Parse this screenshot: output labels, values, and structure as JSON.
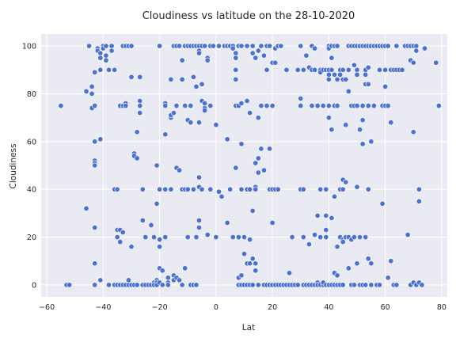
{
  "chart_data": {
    "type": "scatter",
    "title": "Cloudiness vs latitude on the 28-10-2020",
    "xlabel": "Lat",
    "ylabel": "Cloudiness",
    "xlim": [
      -62,
      82
    ],
    "ylim": [
      -5,
      105
    ],
    "xticks": [
      -60,
      -40,
      -20,
      0,
      20,
      40,
      60,
      80
    ],
    "yticks": [
      0,
      20,
      40,
      60,
      80,
      100
    ],
    "grid": true,
    "background": "#eaeaf2",
    "point_color": "#4c72d0",
    "point_edge": "#ffffff",
    "points": [
      [
        -55,
        75
      ],
      [
        -53,
        0
      ],
      [
        -52,
        0
      ],
      [
        -46,
        81
      ],
      [
        -46,
        32
      ],
      [
        -45,
        100
      ],
      [
        -45,
        100
      ],
      [
        -44,
        83
      ],
      [
        -44,
        80
      ],
      [
        -44,
        74
      ],
      [
        -43,
        89
      ],
      [
        -43,
        75
      ],
      [
        -43,
        60
      ],
      [
        -43,
        52
      ],
      [
        -43,
        51
      ],
      [
        -43,
        50
      ],
      [
        -43,
        24
      ],
      [
        -43,
        9
      ],
      [
        -43,
        0
      ],
      [
        -42,
        99
      ],
      [
        -42,
        98
      ],
      [
        -41,
        97
      ],
      [
        -41,
        95
      ],
      [
        -41,
        90
      ],
      [
        -41,
        61
      ],
      [
        -41,
        2
      ],
      [
        -40,
        100
      ],
      [
        -40,
        100
      ],
      [
        -40,
        99
      ],
      [
        -39,
        100
      ],
      [
        -39,
        100
      ],
      [
        -39,
        96
      ],
      [
        -39,
        94
      ],
      [
        -38,
        90
      ],
      [
        -38,
        0
      ],
      [
        -38,
        0
      ],
      [
        -37,
        100
      ],
      [
        -37,
        98
      ],
      [
        -36,
        90
      ],
      [
        -36,
        40
      ],
      [
        -36,
        0
      ],
      [
        -35,
        40
      ],
      [
        -35,
        23
      ],
      [
        -35,
        20
      ],
      [
        -35,
        0
      ],
      [
        -34,
        75
      ],
      [
        -34,
        75
      ],
      [
        -34,
        23
      ],
      [
        -34,
        18
      ],
      [
        -34,
        0
      ],
      [
        -33,
        100
      ],
      [
        -33,
        100
      ],
      [
        -33,
        75
      ],
      [
        -33,
        22
      ],
      [
        -33,
        0
      ],
      [
        -32,
        100
      ],
      [
        -32,
        76
      ],
      [
        -32,
        75
      ],
      [
        -32,
        0
      ],
      [
        -31,
        100
      ],
      [
        -31,
        2
      ],
      [
        -31,
        0
      ],
      [
        -30,
        100
      ],
      [
        -30,
        87
      ],
      [
        -30,
        16
      ],
      [
        -30,
        0
      ],
      [
        -29,
        55
      ],
      [
        -29,
        54
      ],
      [
        -29,
        0
      ],
      [
        -28,
        64
      ],
      [
        -28,
        53
      ],
      [
        -28,
        0
      ],
      [
        -27,
        77
      ],
      [
        -27,
        72
      ],
      [
        -27,
        87
      ],
      [
        -27,
        75
      ],
      [
        -26,
        40
      ],
      [
        -26,
        27
      ],
      [
        -26,
        0
      ],
      [
        -25,
        20
      ],
      [
        -25,
        0
      ],
      [
        -24,
        0
      ],
      [
        -23,
        25
      ],
      [
        -23,
        0
      ],
      [
        -22,
        20
      ],
      [
        -22,
        1
      ],
      [
        -22,
        0
      ],
      [
        -21,
        34
      ],
      [
        -21,
        2
      ],
      [
        -21,
        1
      ],
      [
        -21,
        0
      ],
      [
        -21,
        50
      ],
      [
        -20,
        100
      ],
      [
        -20,
        40
      ],
      [
        -20,
        16
      ],
      [
        -20,
        7
      ],
      [
        -20,
        19
      ],
      [
        -20,
        1
      ],
      [
        -19,
        6
      ],
      [
        -19,
        0
      ],
      [
        -19,
        0
      ],
      [
        -18,
        63
      ],
      [
        -18,
        76
      ],
      [
        -18,
        75
      ],
      [
        -18,
        40
      ],
      [
        -18,
        20
      ],
      [
        -17,
        3
      ],
      [
        -17,
        1
      ],
      [
        -17,
        0
      ],
      [
        -16,
        86
      ],
      [
        -16,
        70
      ],
      [
        -16,
        71
      ],
      [
        -16,
        40
      ],
      [
        -15,
        100
      ],
      [
        -15,
        72
      ],
      [
        -15,
        4
      ],
      [
        -15,
        2
      ],
      [
        -14,
        100
      ],
      [
        -14,
        75
      ],
      [
        -14,
        49
      ],
      [
        -14,
        3
      ],
      [
        -13,
        100
      ],
      [
        -13,
        48
      ],
      [
        -13,
        2
      ],
      [
        -12,
        94
      ],
      [
        -12,
        86
      ],
      [
        -12,
        0
      ],
      [
        -12,
        40
      ],
      [
        -11,
        100
      ],
      [
        -11,
        75
      ],
      [
        -11,
        40
      ],
      [
        -11,
        7
      ],
      [
        -10,
        100
      ],
      [
        -10,
        69
      ],
      [
        -10,
        40
      ],
      [
        -10,
        20
      ],
      [
        -9,
        100
      ],
      [
        -9,
        75
      ],
      [
        -9,
        68
      ],
      [
        -9,
        0
      ],
      [
        -8,
        100
      ],
      [
        -8,
        87
      ],
      [
        -8,
        40
      ],
      [
        -8,
        0
      ],
      [
        -7,
        100
      ],
      [
        -7,
        83
      ],
      [
        -7,
        20
      ],
      [
        -7,
        0
      ],
      [
        -6,
        100
      ],
      [
        -6,
        98
      ],
      [
        -6,
        97
      ],
      [
        -6,
        68
      ],
      [
        -6,
        45
      ],
      [
        -6,
        41
      ],
      [
        -6,
        27
      ],
      [
        -6,
        24
      ],
      [
        -5,
        100
      ],
      [
        -5,
        84
      ],
      [
        -5,
        77
      ],
      [
        -5,
        40
      ],
      [
        -4,
        100
      ],
      [
        -4,
        76
      ],
      [
        -4,
        74
      ],
      [
        -4,
        73
      ],
      [
        -3,
        95
      ],
      [
        -3,
        94
      ],
      [
        -3,
        21
      ],
      [
        -2,
        100
      ],
      [
        -2,
        75
      ],
      [
        -2,
        40
      ],
      [
        -1,
        100
      ],
      [
        0,
        67
      ],
      [
        0,
        20
      ],
      [
        1,
        100
      ],
      [
        1,
        39
      ],
      [
        2,
        37
      ],
      [
        3,
        100
      ],
      [
        4,
        100
      ],
      [
        4,
        61
      ],
      [
        4,
        26
      ],
      [
        5,
        100
      ],
      [
        5,
        100
      ],
      [
        5,
        40
      ],
      [
        6,
        100
      ],
      [
        6,
        99
      ],
      [
        6,
        20
      ],
      [
        7,
        97
      ],
      [
        7,
        95
      ],
      [
        7,
        90
      ],
      [
        7,
        86
      ],
      [
        7,
        75
      ],
      [
        7,
        49
      ],
      [
        8,
        100
      ],
      [
        8,
        75
      ],
      [
        8,
        20
      ],
      [
        8,
        3
      ],
      [
        8,
        0
      ],
      [
        9,
        100
      ],
      [
        9,
        76
      ],
      [
        9,
        59
      ],
      [
        9,
        40
      ],
      [
        9,
        4
      ],
      [
        9,
        0
      ],
      [
        10,
        0
      ],
      [
        10,
        20
      ],
      [
        10,
        13
      ],
      [
        11,
        100
      ],
      [
        11,
        77
      ],
      [
        11,
        40
      ],
      [
        11,
        9
      ],
      [
        11,
        0
      ],
      [
        12,
        72
      ],
      [
        12,
        40
      ],
      [
        12,
        19
      ],
      [
        12,
        9
      ],
      [
        12,
        0
      ],
      [
        13,
        100
      ],
      [
        13,
        97
      ],
      [
        13,
        31
      ],
      [
        13,
        11
      ],
      [
        13,
        0
      ],
      [
        14,
        95
      ],
      [
        14,
        51
      ],
      [
        14,
        41
      ],
      [
        14,
        40
      ],
      [
        14,
        9
      ],
      [
        14,
        6
      ],
      [
        15,
        98
      ],
      [
        15,
        70
      ],
      [
        15,
        53
      ],
      [
        15,
        47
      ],
      [
        15,
        0
      ],
      [
        16,
        100
      ],
      [
        16,
        75
      ],
      [
        16,
        75
      ],
      [
        16,
        57
      ],
      [
        17,
        96
      ],
      [
        17,
        48
      ],
      [
        17,
        0
      ],
      [
        18,
        100
      ],
      [
        18,
        90
      ],
      [
        18,
        75
      ],
      [
        18,
        0
      ],
      [
        19,
        100
      ],
      [
        19,
        57
      ],
      [
        19,
        40
      ],
      [
        19,
        0
      ],
      [
        20,
        93
      ],
      [
        20,
        75
      ],
      [
        20,
        40
      ],
      [
        20,
        26
      ],
      [
        20,
        0
      ],
      [
        21,
        99
      ],
      [
        21,
        93
      ],
      [
        21,
        40
      ],
      [
        21,
        0
      ],
      [
        22,
        100
      ],
      [
        22,
        100
      ],
      [
        22,
        40
      ],
      [
        22,
        0
      ],
      [
        23,
        100
      ],
      [
        23,
        100
      ],
      [
        23,
        0
      ],
      [
        24,
        0
      ],
      [
        25,
        90
      ],
      [
        25,
        0
      ],
      [
        26,
        5
      ],
      [
        26,
        0
      ],
      [
        27,
        20
      ],
      [
        27,
        0
      ],
      [
        28,
        0
      ],
      [
        29,
        90
      ],
      [
        29,
        0
      ],
      [
        30,
        100
      ],
      [
        30,
        100
      ],
      [
        30,
        78
      ],
      [
        30,
        75
      ],
      [
        30,
        40
      ],
      [
        31,
        90
      ],
      [
        31,
        40
      ],
      [
        31,
        20
      ],
      [
        31,
        0
      ],
      [
        32,
        96
      ],
      [
        32,
        0
      ],
      [
        33,
        91
      ],
      [
        33,
        17
      ],
      [
        33,
        0
      ],
      [
        34,
        100
      ],
      [
        34,
        90
      ],
      [
        34,
        75
      ],
      [
        34,
        0
      ],
      [
        35,
        99
      ],
      [
        35,
        90
      ],
      [
        35,
        21
      ],
      [
        35,
        0
      ],
      [
        36,
        75
      ],
      [
        36,
        29
      ],
      [
        36,
        1
      ],
      [
        36,
        0
      ],
      [
        37,
        90
      ],
      [
        37,
        89
      ],
      [
        37,
        40
      ],
      [
        37,
        20
      ],
      [
        37,
        0
      ],
      [
        38,
        90
      ],
      [
        38,
        75
      ],
      [
        38,
        0
      ],
      [
        38,
        1
      ],
      [
        39,
        90
      ],
      [
        39,
        40
      ],
      [
        39,
        29
      ],
      [
        39,
        20
      ],
      [
        39,
        23
      ],
      [
        39,
        0
      ],
      [
        40,
        100
      ],
      [
        40,
        99
      ],
      [
        40,
        90
      ],
      [
        40,
        88
      ],
      [
        40,
        86
      ],
      [
        40,
        75
      ],
      [
        40,
        70
      ],
      [
        40,
        0
      ],
      [
        41,
        100
      ],
      [
        41,
        95
      ],
      [
        41,
        90
      ],
      [
        41,
        65
      ],
      [
        41,
        28
      ],
      [
        41,
        0
      ],
      [
        42,
        100
      ],
      [
        42,
        88
      ],
      [
        42,
        75
      ],
      [
        42,
        37
      ],
      [
        42,
        5
      ],
      [
        42,
        0
      ],
      [
        43,
        100
      ],
      [
        43,
        86
      ],
      [
        43,
        75
      ],
      [
        43,
        16
      ],
      [
        43,
        4
      ],
      [
        43,
        0
      ],
      [
        44,
        90
      ],
      [
        44,
        88
      ],
      [
        44,
        40
      ],
      [
        44,
        20
      ],
      [
        44,
        0
      ],
      [
        45,
        90
      ],
      [
        45,
        86
      ],
      [
        45,
        44
      ],
      [
        45,
        40
      ],
      [
        45,
        19
      ],
      [
        45,
        18
      ],
      [
        45,
        0
      ],
      [
        46,
        86
      ],
      [
        46,
        67
      ],
      [
        46,
        43
      ],
      [
        46,
        20
      ],
      [
        47,
        100
      ],
      [
        47,
        90
      ],
      [
        47,
        81
      ],
      [
        47,
        20
      ],
      [
        47,
        7
      ],
      [
        48,
        100
      ],
      [
        48,
        75
      ],
      [
        48,
        19
      ],
      [
        48,
        0
      ],
      [
        49,
        100
      ],
      [
        49,
        92
      ],
      [
        49,
        75
      ],
      [
        49,
        20
      ],
      [
        49,
        0
      ],
      [
        50,
        100
      ],
      [
        50,
        90
      ],
      [
        50,
        88
      ],
      [
        50,
        75
      ],
      [
        50,
        41
      ],
      [
        50,
        9
      ],
      [
        51,
        100
      ],
      [
        51,
        100
      ],
      [
        51,
        65
      ],
      [
        51,
        20
      ],
      [
        51,
        0
      ],
      [
        52,
        100
      ],
      [
        52,
        75
      ],
      [
        52,
        69
      ],
      [
        52,
        59
      ],
      [
        52,
        0
      ],
      [
        53,
        100
      ],
      [
        53,
        90
      ],
      [
        53,
        88
      ],
      [
        53,
        84
      ],
      [
        53,
        20
      ],
      [
        53,
        0
      ],
      [
        54,
        100
      ],
      [
        54,
        91
      ],
      [
        54,
        84
      ],
      [
        54,
        75
      ],
      [
        54,
        40
      ],
      [
        54,
        11
      ],
      [
        55,
        100
      ],
      [
        55,
        100
      ],
      [
        55,
        60
      ],
      [
        55,
        9
      ],
      [
        55,
        0
      ],
      [
        56,
        100
      ],
      [
        56,
        100
      ],
      [
        56,
        75
      ],
      [
        57,
        100
      ],
      [
        57,
        100
      ],
      [
        57,
        0
      ],
      [
        58,
        100
      ],
      [
        58,
        100
      ],
      [
        58,
        90
      ],
      [
        58,
        0
      ],
      [
        59,
        100
      ],
      [
        59,
        75
      ],
      [
        59,
        34
      ],
      [
        60,
        100
      ],
      [
        60,
        90
      ],
      [
        60,
        83
      ],
      [
        60,
        75
      ],
      [
        61,
        100
      ],
      [
        61,
        75
      ],
      [
        61,
        3
      ],
      [
        62,
        90
      ],
      [
        62,
        68
      ],
      [
        62,
        10
      ],
      [
        63,
        90
      ],
      [
        63,
        0
      ],
      [
        64,
        100
      ],
      [
        64,
        90
      ],
      [
        64,
        0
      ],
      [
        65,
        90
      ],
      [
        66,
        90
      ],
      [
        67,
        100
      ],
      [
        68,
        100
      ],
      [
        68,
        21
      ],
      [
        69,
        100
      ],
      [
        69,
        94
      ],
      [
        69,
        0
      ],
      [
        70,
        100
      ],
      [
        70,
        93
      ],
      [
        70,
        64
      ],
      [
        70,
        1
      ],
      [
        71,
        100
      ],
      [
        71,
        98
      ],
      [
        71,
        0
      ],
      [
        72,
        40
      ],
      [
        72,
        35
      ],
      [
        72,
        1
      ],
      [
        73,
        0
      ],
      [
        74,
        99
      ],
      [
        78,
        93
      ],
      [
        79,
        75
      ]
    ]
  }
}
